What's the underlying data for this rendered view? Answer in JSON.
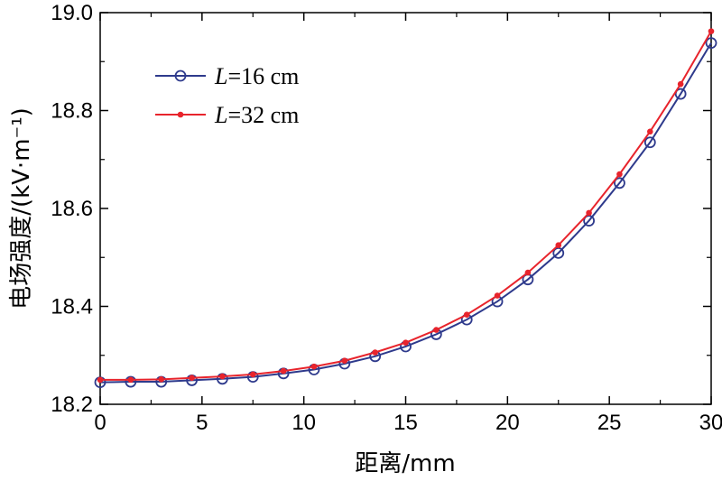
{
  "chart_data": {
    "type": "line",
    "xlabel": "距离/mm",
    "ylabel": "电场强度/(kV·m⁻¹)",
    "xlim": [
      0,
      30
    ],
    "ylim": [
      18.2,
      19.0
    ],
    "xticks": [
      "0",
      "5",
      "10",
      "15",
      "20",
      "25",
      "30"
    ],
    "yticks": [
      "18.2",
      "18.4",
      "18.6",
      "18.8",
      "19.0"
    ],
    "grid": false,
    "legend_position": "top-left",
    "x": [
      0,
      1.5,
      3,
      4.5,
      6,
      7.5,
      9,
      10.5,
      12,
      13.5,
      15,
      16.5,
      18,
      19.5,
      21,
      22.5,
      24,
      25.5,
      27,
      28.5,
      30
    ],
    "series": [
      {
        "name": "L=16 cm",
        "legend_italic": "L",
        "legend_rest": "=16 cm",
        "color": "#2e3a8c",
        "marker": "open-circle",
        "values": [
          18.245,
          18.246,
          18.246,
          18.249,
          18.252,
          18.256,
          18.263,
          18.271,
          18.283,
          18.298,
          18.318,
          18.343,
          18.373,
          18.41,
          18.455,
          18.509,
          18.575,
          18.652,
          18.735,
          18.834,
          18.938
        ]
      },
      {
        "name": "L=32 cm",
        "legend_italic": "L",
        "legend_rest": "=32 cm",
        "color": "#e8242c",
        "marker": "filled-dot",
        "values": [
          18.25,
          18.25,
          18.251,
          18.254,
          18.257,
          18.261,
          18.268,
          18.277,
          18.289,
          18.306,
          18.326,
          18.352,
          18.383,
          18.422,
          18.469,
          18.525,
          18.591,
          18.67,
          18.757,
          18.854,
          18.962
        ]
      }
    ]
  }
}
